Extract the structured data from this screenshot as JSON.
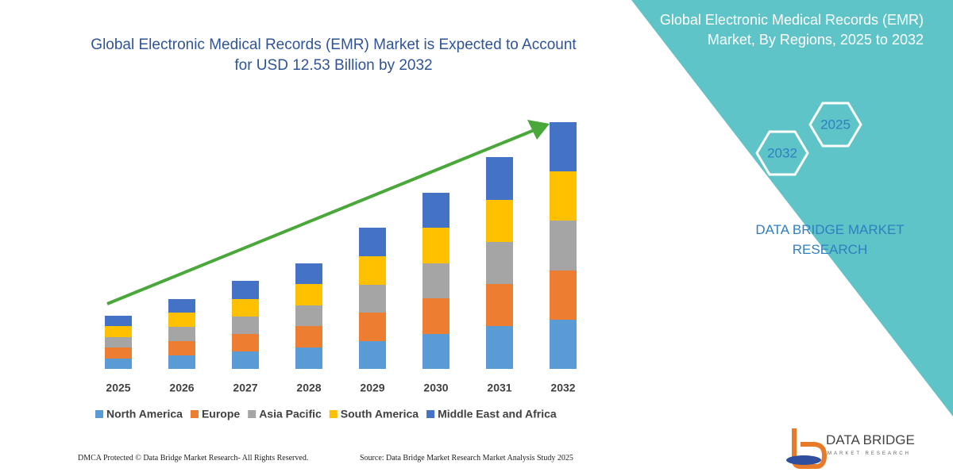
{
  "chart_data": {
    "type": "stacked-bar",
    "title": "Global Electronic Medical Records (EMR) Market  is Expected to Account for USD 12.53 Billion by 2032",
    "categories": [
      "2025",
      "2026",
      "2027",
      "2028",
      "2029",
      "2030",
      "2031",
      "2032"
    ],
    "series": [
      {
        "name": "North America",
        "color": "#5b9bd5",
        "values": [
          13,
          17,
          22,
          27,
          35,
          44,
          54,
          62
        ]
      },
      {
        "name": "Europe",
        "color": "#ed7d31",
        "values": [
          14,
          18,
          22,
          27,
          36,
          45,
          53,
          62
        ]
      },
      {
        "name": "Asia Pacific",
        "color": "#a5a5a5",
        "values": [
          13,
          18,
          22,
          26,
          35,
          44,
          53,
          63
        ]
      },
      {
        "name": "South America",
        "color": "#ffc000",
        "values": [
          14,
          18,
          22,
          27,
          36,
          45,
          53,
          62
        ]
      },
      {
        "name": "Middle East and Africa",
        "color": "#4472c4",
        "values": [
          13,
          17,
          23,
          26,
          36,
          44,
          54,
          62
        ]
      }
    ]
  },
  "panel": {
    "title": "Global Electronic Medical Records (EMR) Market, By Regions, 2025 to 2032",
    "hex_labels": [
      "2032",
      "2025"
    ],
    "brand": "DATA BRIDGE MARKET RESEARCH"
  },
  "footer": {
    "copyright": "DMCA Protected © Data Bridge Market Research-  All Rights Reserved.",
    "source": "Source: Data Bridge Market Research  Market Analysis Study 2025"
  },
  "logo": {
    "name": "DATA BRIDGE",
    "tagline": "MARKET RESEARCH"
  }
}
